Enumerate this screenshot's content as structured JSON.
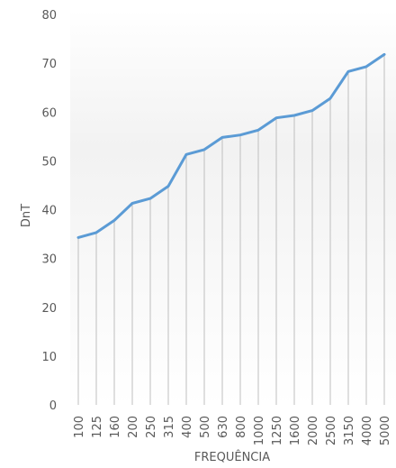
{
  "chart_data": {
    "type": "line",
    "title": "",
    "xlabel": "FREQUÊNCIA",
    "ylabel": "DnT",
    "ylim": [
      0,
      80
    ],
    "yticks": [
      0,
      10,
      20,
      30,
      40,
      50,
      60,
      70,
      80
    ],
    "grid": "vertical drop lines at each category",
    "legend": "none",
    "categories": [
      "100",
      "125",
      "160",
      "200",
      "250",
      "315",
      "400",
      "500",
      "630",
      "800",
      "1000",
      "1250",
      "1600",
      "2000",
      "2500",
      "3150",
      "4000",
      "5000"
    ],
    "series": [
      {
        "values": [
          34.3,
          35.3,
          37.8,
          41.3,
          42.3,
          44.8,
          51.3,
          52.3,
          54.8,
          55.3,
          56.3,
          58.8,
          59.3,
          60.3,
          62.8,
          68.3,
          69.3,
          71.8
        ],
        "color": "#5b9bd5"
      }
    ],
    "colors": {
      "line": "#5b9bd5",
      "droplines": "#bfbfbf",
      "text": "#595959",
      "background_gradient_top": "#f2f2f2",
      "background_gradient_bottom": "#ffffff"
    }
  }
}
